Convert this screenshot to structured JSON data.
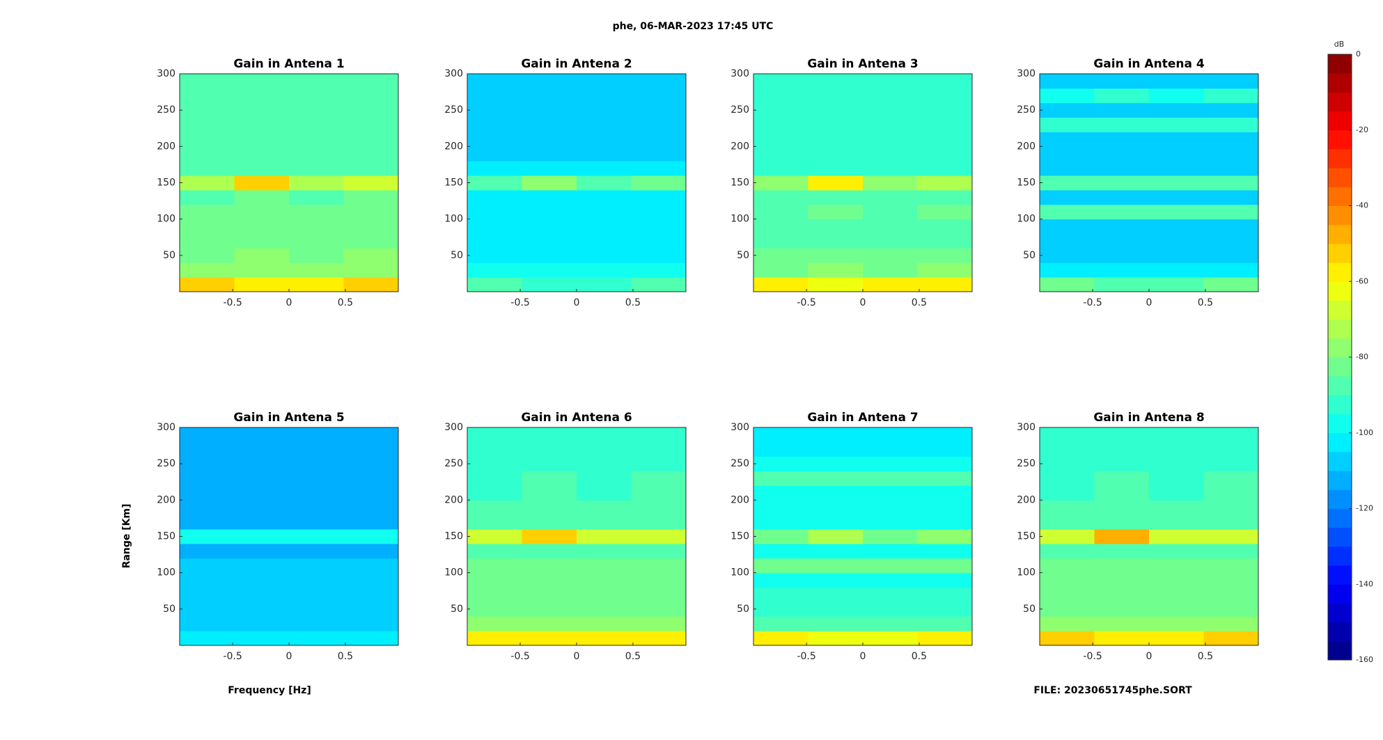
{
  "figure": {
    "title": "phe, 06-MAR-2023 17:45 UTC",
    "xlabel": "Frequency [Hz]",
    "ylabel": "Range [Km]",
    "footer": "FILE: 20230651745phe.SORT",
    "colormap": "jet",
    "colorbar": {
      "label": "dB",
      "lim": [
        -160,
        0
      ],
      "ticks": [
        0,
        -20,
        -40,
        -60,
        -80,
        -100,
        -120,
        -140,
        -160
      ]
    }
  },
  "chart_data": [
    {
      "type": "heatmap",
      "title": "Gain in Antena 1",
      "xbins": [
        -0.97,
        -0.485,
        0,
        0.485,
        0.97
      ],
      "ybins": [
        0,
        20,
        40,
        60,
        80,
        100,
        120,
        140,
        160,
        180,
        200,
        220,
        240,
        260,
        280,
        300
      ],
      "z": [
        [
          -55,
          -58,
          -58,
          -55
        ],
        [
          -80,
          -78,
          -80,
          -78
        ],
        [
          -82,
          -80,
          -82,
          -80
        ],
        [
          -84,
          -82,
          -84,
          -82
        ],
        [
          -85,
          -84,
          -85,
          -84
        ],
        [
          -84,
          -82,
          -84,
          -82
        ],
        [
          -86,
          -85,
          -86,
          -85
        ],
        [
          -72,
          -55,
          -72,
          -68
        ],
        [
          -88,
          -86,
          -88,
          -86
        ],
        [
          -89,
          -88,
          -89,
          -88
        ],
        [
          -90,
          -89,
          -90,
          -89
        ],
        [
          -90,
          -89,
          -90,
          -89
        ],
        [
          -90,
          -89,
          -90,
          -89
        ],
        [
          -90,
          -90,
          -90,
          -90
        ],
        [
          -90,
          -90,
          -90,
          -90
        ]
      ],
      "xlim": [
        -0.97,
        0.97
      ],
      "ylim": [
        0,
        300
      ],
      "xticks": [
        -0.5,
        0,
        0.5
      ],
      "yticks": [
        50,
        100,
        150,
        200,
        250,
        300
      ]
    },
    {
      "type": "heatmap",
      "title": "Gain in Antena 2",
      "xbins": [
        -0.97,
        -0.485,
        0,
        0.485,
        0.97
      ],
      "ybins": [
        0,
        20,
        40,
        60,
        80,
        100,
        120,
        140,
        160,
        180,
        200,
        220,
        240,
        260,
        280,
        300
      ],
      "z": [
        [
          -90,
          -92,
          -92,
          -90
        ],
        [
          -100,
          -100,
          -100,
          -100
        ],
        [
          -102,
          -102,
          -102,
          -102
        ],
        [
          -103,
          -103,
          -103,
          -103
        ],
        [
          -104,
          -104,
          -104,
          -104
        ],
        [
          -104,
          -104,
          -104,
          -104
        ],
        [
          -104,
          -104,
          -104,
          -104
        ],
        [
          -88,
          -80,
          -88,
          -82
        ],
        [
          -105,
          -105,
          -105,
          -105
        ],
        [
          -106,
          -106,
          -106,
          -106
        ],
        [
          -107,
          -107,
          -107,
          -107
        ],
        [
          -107,
          -107,
          -107,
          -107
        ],
        [
          -108,
          -108,
          -108,
          -108
        ],
        [
          -108,
          -108,
          -108,
          -108
        ],
        [
          -108,
          -108,
          -108,
          -108
        ]
      ],
      "xlim": [
        -0.97,
        0.97
      ],
      "ylim": [
        0,
        300
      ],
      "xticks": [
        -0.5,
        0,
        0.5
      ],
      "yticks": [
        50,
        100,
        150,
        200,
        250,
        300
      ]
    },
    {
      "type": "heatmap",
      "title": "Gain in Antena 3",
      "xbins": [
        -0.97,
        -0.485,
        0,
        0.485,
        0.97
      ],
      "ybins": [
        0,
        20,
        40,
        60,
        80,
        100,
        120,
        140,
        160,
        180,
        200,
        220,
        240,
        260,
        280,
        300
      ],
      "z": [
        [
          -58,
          -62,
          -60,
          -58
        ],
        [
          -82,
          -80,
          -82,
          -80
        ],
        [
          -85,
          -84,
          -85,
          -84
        ],
        [
          -87,
          -86,
          -87,
          -86
        ],
        [
          -88,
          -87,
          -88,
          -87
        ],
        [
          -86,
          -85,
          -86,
          -85
        ],
        [
          -90,
          -89,
          -90,
          -89
        ],
        [
          -76,
          -60,
          -78,
          -72
        ],
        [
          -92,
          -91,
          -92,
          -91
        ],
        [
          -93,
          -92,
          -93,
          -92
        ],
        [
          -94,
          -93,
          -94,
          -93
        ],
        [
          -94,
          -93,
          -94,
          -93
        ],
        [
          -95,
          -94,
          -95,
          -94
        ],
        [
          -95,
          -95,
          -95,
          -95
        ],
        [
          -95,
          -95,
          -95,
          -95
        ]
      ],
      "xlim": [
        -0.97,
        0.97
      ],
      "ylim": [
        0,
        300
      ],
      "xticks": [
        -0.5,
        0,
        0.5
      ],
      "yticks": [
        50,
        100,
        150,
        200,
        250,
        300
      ]
    },
    {
      "type": "heatmap",
      "title": "Gain in Antena 4",
      "xbins": [
        -0.97,
        -0.485,
        0,
        0.485,
        0.97
      ],
      "ybins": [
        0,
        20,
        40,
        60,
        80,
        100,
        120,
        140,
        160,
        180,
        200,
        220,
        240,
        260,
        280,
        300
      ],
      "z": [
        [
          -85,
          -86,
          -86,
          -85
        ],
        [
          -104,
          -104,
          -104,
          -104
        ],
        [
          -106,
          -106,
          -106,
          -106
        ],
        [
          -108,
          -108,
          -108,
          -108
        ],
        [
          -108,
          -108,
          -108,
          -108
        ],
        [
          -90,
          -90,
          -90,
          -90
        ],
        [
          -106,
          -106,
          -106,
          -106
        ],
        [
          -90,
          -88,
          -90,
          -88
        ],
        [
          -108,
          -108,
          -108,
          -108
        ],
        [
          -110,
          -110,
          -110,
          -110
        ],
        [
          -110,
          -110,
          -110,
          -110
        ],
        [
          -95,
          -95,
          -95,
          -95
        ],
        [
          -110,
          -110,
          -110,
          -110
        ],
        [
          -96,
          -95,
          -96,
          -95
        ],
        [
          -106,
          -106,
          -106,
          -106
        ]
      ],
      "xlim": [
        -0.97,
        0.97
      ],
      "ylim": [
        0,
        300
      ],
      "xticks": [
        -0.5,
        0,
        0.5
      ],
      "yticks": [
        50,
        100,
        150,
        200,
        250,
        300
      ]
    },
    {
      "type": "heatmap",
      "title": "Gain in Antena 5",
      "xbins": [
        -0.97,
        -0.485,
        0,
        0.485,
        0.97
      ],
      "ybins": [
        0,
        20,
        40,
        60,
        80,
        100,
        120,
        140,
        160,
        180,
        200,
        220,
        240,
        260,
        280,
        300
      ],
      "z": [
        [
          -104,
          -105,
          -105,
          -104
        ],
        [
          -108,
          -108,
          -108,
          -108
        ],
        [
          -109,
          -109,
          -109,
          -109
        ],
        [
          -110,
          -110,
          -110,
          -110
        ],
        [
          -110,
          -110,
          -110,
          -110
        ],
        [
          -110,
          -110,
          -110,
          -110
        ],
        [
          -111,
          -111,
          -111,
          -111
        ],
        [
          -98,
          -97,
          -98,
          -97
        ],
        [
          -112,
          -112,
          -112,
          -112
        ],
        [
          -113,
          -113,
          -113,
          -113
        ],
        [
          -114,
          -114,
          -114,
          -114
        ],
        [
          -114,
          -114,
          -114,
          -114
        ],
        [
          -115,
          -115,
          -115,
          -115
        ],
        [
          -115,
          -115,
          -115,
          -115
        ],
        [
          -115,
          -115,
          -115,
          -115
        ]
      ],
      "xlim": [
        -0.97,
        0.97
      ],
      "ylim": [
        0,
        300
      ],
      "xticks": [
        -0.5,
        0,
        0.5
      ],
      "yticks": [
        50,
        100,
        150,
        200,
        250,
        300
      ]
    },
    {
      "type": "heatmap",
      "title": "Gain in Antena 6",
      "xbins": [
        -0.97,
        -0.485,
        0,
        0.485,
        0.97
      ],
      "ybins": [
        0,
        20,
        40,
        60,
        80,
        100,
        120,
        140,
        160,
        180,
        200,
        220,
        240,
        260,
        280,
        300
      ],
      "z": [
        [
          -56,
          -58,
          -58,
          -56
        ],
        [
          -80,
          -79,
          -80,
          -79
        ],
        [
          -82,
          -81,
          -82,
          -81
        ],
        [
          -84,
          -83,
          -84,
          -83
        ],
        [
          -85,
          -84,
          -85,
          -84
        ],
        [
          -85,
          -84,
          -85,
          -84
        ],
        [
          -87,
          -86,
          -87,
          -86
        ],
        [
          -70,
          -52,
          -70,
          -68
        ],
        [
          -89,
          -88,
          -89,
          -88
        ],
        [
          -90,
          -89,
          -90,
          -89
        ],
        [
          -91,
          -90,
          -91,
          -90
        ],
        [
          -91,
          -90,
          -91,
          -90
        ],
        [
          -92,
          -91,
          -92,
          -91
        ],
        [
          -92,
          -92,
          -92,
          -92
        ],
        [
          -92,
          -92,
          -92,
          -92
        ]
      ],
      "xlim": [
        -0.97,
        0.97
      ],
      "ylim": [
        0,
        300
      ],
      "xticks": [
        -0.5,
        0,
        0.5
      ],
      "yticks": [
        50,
        100,
        150,
        200,
        250,
        300
      ]
    },
    {
      "type": "heatmap",
      "title": "Gain in Antena 7",
      "xbins": [
        -0.97,
        -0.485,
        0,
        0.485,
        0.97
      ],
      "ybins": [
        0,
        20,
        40,
        60,
        80,
        100,
        120,
        140,
        160,
        180,
        200,
        220,
        240,
        260,
        280,
        300
      ],
      "z": [
        [
          -60,
          -64,
          -62,
          -60
        ],
        [
          -90,
          -90,
          -90,
          -90
        ],
        [
          -93,
          -93,
          -93,
          -93
        ],
        [
          -95,
          -95,
          -95,
          -95
        ],
        [
          -96,
          -96,
          -96,
          -96
        ],
        [
          -85,
          -84,
          -85,
          -84
        ],
        [
          -96,
          -96,
          -96,
          -96
        ],
        [
          -82,
          -72,
          -82,
          -80
        ],
        [
          -98,
          -98,
          -98,
          -98
        ],
        [
          -99,
          -99,
          -99,
          -99
        ],
        [
          -100,
          -100,
          -100,
          -100
        ],
        [
          -90,
          -90,
          -90,
          -90
        ],
        [
          -100,
          -100,
          -100,
          -100
        ],
        [
          -101,
          -101,
          -101,
          -101
        ],
        [
          -101,
          -101,
          -101,
          -101
        ]
      ],
      "xlim": [
        -0.97,
        0.97
      ],
      "ylim": [
        0,
        300
      ],
      "xticks": [
        -0.5,
        0,
        0.5
      ],
      "yticks": [
        50,
        100,
        150,
        200,
        250,
        300
      ]
    },
    {
      "type": "heatmap",
      "title": "Gain in Antena 8",
      "xbins": [
        -0.97,
        -0.485,
        0,
        0.485,
        0.97
      ],
      "ybins": [
        0,
        20,
        40,
        60,
        80,
        100,
        120,
        140,
        160,
        180,
        200,
        220,
        240,
        260,
        280,
        300
      ],
      "z": [
        [
          -55,
          -57,
          -57,
          -55
        ],
        [
          -79,
          -78,
          -79,
          -78
        ],
        [
          -82,
          -81,
          -82,
          -81
        ],
        [
          -84,
          -83,
          -84,
          -83
        ],
        [
          -85,
          -84,
          -85,
          -84
        ],
        [
          -84,
          -83,
          -84,
          -83
        ],
        [
          -87,
          -86,
          -87,
          -86
        ],
        [
          -68,
          -50,
          -68,
          -66
        ],
        [
          -89,
          -88,
          -89,
          -88
        ],
        [
          -90,
          -89,
          -90,
          -89
        ],
        [
          -91,
          -90,
          -91,
          -90
        ],
        [
          -91,
          -90,
          -91,
          -90
        ],
        [
          -92,
          -91,
          -92,
          -91
        ],
        [
          -92,
          -92,
          -92,
          -92
        ],
        [
          -92,
          -92,
          -92,
          -92
        ]
      ],
      "xlim": [
        -0.97,
        0.97
      ],
      "ylim": [
        0,
        300
      ],
      "xticks": [
        -0.5,
        0,
        0.5
      ],
      "yticks": [
        50,
        100,
        150,
        200,
        250,
        300
      ]
    }
  ]
}
